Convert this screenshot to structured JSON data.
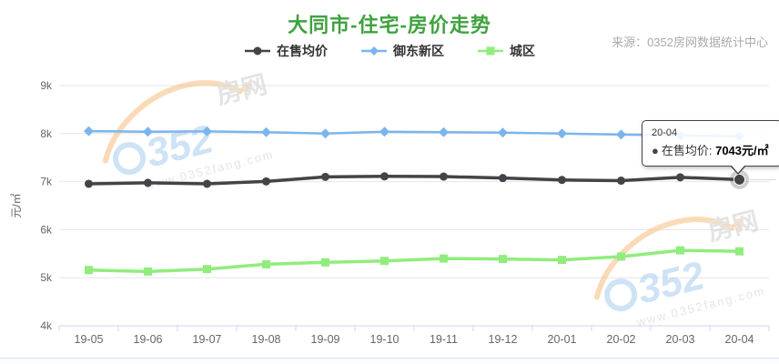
{
  "header": {
    "title": "大同市-住宅-房价走势",
    "title_color": "#3fa23f",
    "source": "来源：0352房网数据统计中心"
  },
  "chart_data": {
    "type": "line",
    "title": "大同市-住宅-房价走势",
    "xlabel": "",
    "ylabel": "元/㎡",
    "ylim": [
      4000,
      9000
    ],
    "y_tick_values": [
      4000,
      5000,
      6000,
      7000,
      8000,
      9000
    ],
    "y_tick_labels": [
      "4k",
      "5k",
      "6k",
      "7k",
      "8k",
      "9k"
    ],
    "categories": [
      "19-05",
      "19-06",
      "19-07",
      "19-08",
      "19-09",
      "19-10",
      "19-11",
      "19-12",
      "20-01",
      "20-02",
      "20-03",
      "20-04"
    ],
    "grid": "horizontal-only",
    "legend_position": "top-center",
    "series": [
      {
        "name": "在售均价",
        "color": "#434348",
        "marker": "circle",
        "values": [
          6955,
          6975,
          6955,
          7005,
          7100,
          7110,
          7105,
          7075,
          7035,
          7020,
          7090,
          7043
        ]
      },
      {
        "name": "御东新区",
        "color": "#7cb5ec",
        "marker": "diamond",
        "values": [
          8050,
          8040,
          8045,
          8030,
          8000,
          8040,
          8030,
          8020,
          8000,
          7980,
          7960,
          7945
        ]
      },
      {
        "name": "城区",
        "color": "#90ed7d",
        "marker": "square",
        "values": [
          5160,
          5130,
          5180,
          5280,
          5320,
          5350,
          5400,
          5390,
          5370,
          5440,
          5570,
          5550
        ]
      }
    ],
    "tooltip": {
      "header": "20-04",
      "series": "在售均价",
      "label": "在售均价: ",
      "value": "7043元/㎡",
      "series_index": 0,
      "point_index": 11
    }
  },
  "watermark": {
    "number": "0352",
    "digits": "352",
    "suffix": "房网",
    "url": "www.0352fang.com"
  },
  "colors": {
    "gridline": "#e6e6e6",
    "axis_line": "#ccd6eb",
    "axis_text": "#666666",
    "watermark_blue": "#a8cdf2",
    "watermark_orange": "#f6bd7d",
    "watermark_gray": "#cfcfcf"
  }
}
